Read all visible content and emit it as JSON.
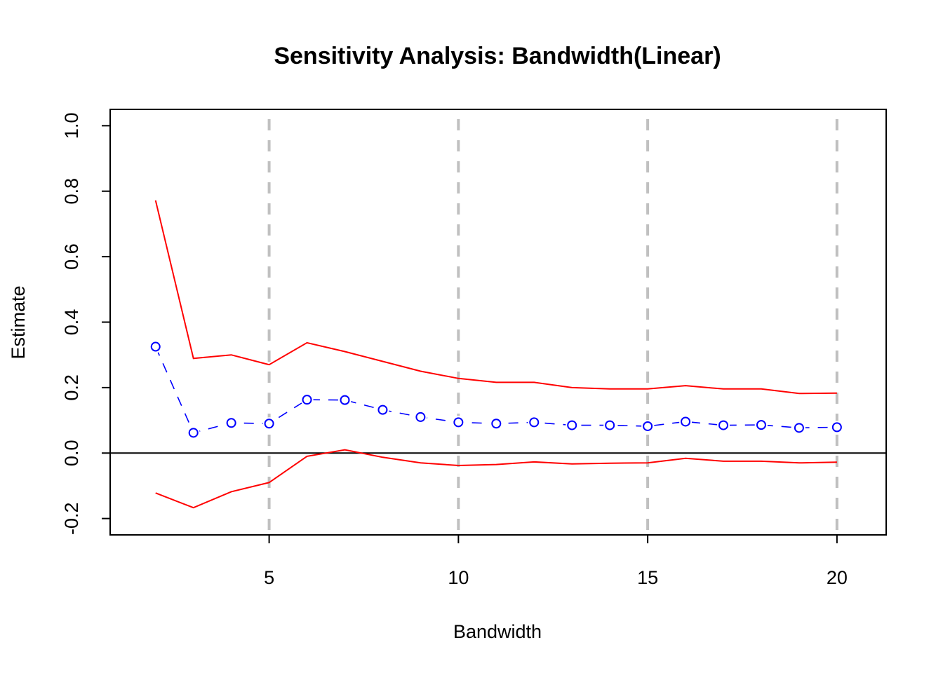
{
  "chart_data": {
    "type": "line",
    "title": "Sensitivity Analysis: Bandwidth(Linear)",
    "xlabel": "Bandwidth",
    "ylabel": "Estimate",
    "xlim": [
      0.8,
      21.3
    ],
    "ylim": [
      -0.25,
      1.05
    ],
    "x_ticks": [
      5,
      10,
      15,
      20
    ],
    "x_tick_labels": [
      "5",
      "10",
      "15",
      "20"
    ],
    "y_ticks": [
      -0.2,
      0.0,
      0.2,
      0.4,
      0.6,
      0.8,
      1.0
    ],
    "y_tick_labels": [
      "-0.2",
      "0.0",
      "0.2",
      "0.4",
      "0.6",
      "0.8",
      "1.0"
    ],
    "reference_vlines": [
      5,
      10,
      15,
      20
    ],
    "reference_hline": 0,
    "grid": false,
    "legend": "none",
    "x": [
      2,
      3,
      4,
      5,
      6,
      7,
      8,
      9,
      10,
      11,
      12,
      13,
      14,
      15,
      16,
      17,
      18,
      19,
      20
    ],
    "series": [
      {
        "role": "estimate",
        "color": "#0000ff",
        "style": "dashed-with-circles",
        "values": [
          0.325,
          0.062,
          0.092,
          0.09,
          0.163,
          0.162,
          0.132,
          0.11,
          0.094,
          0.09,
          0.094,
          0.085,
          0.085,
          0.082,
          0.096,
          0.085,
          0.086,
          0.077,
          0.079
        ]
      },
      {
        "role": "upper",
        "color": "#ff0000",
        "style": "solid",
        "values": [
          0.772,
          0.289,
          0.3,
          0.27,
          0.337,
          0.31,
          0.28,
          0.25,
          0.228,
          0.216,
          0.216,
          0.2,
          0.196,
          0.196,
          0.206,
          0.196,
          0.196,
          0.182,
          0.183
        ]
      },
      {
        "role": "lower",
        "color": "#ff0000",
        "style": "solid",
        "values": [
          -0.122,
          -0.167,
          -0.118,
          -0.09,
          -0.01,
          0.01,
          -0.013,
          -0.03,
          -0.038,
          -0.035,
          -0.027,
          -0.033,
          -0.031,
          -0.03,
          -0.016,
          -0.025,
          -0.025,
          -0.03,
          -0.028
        ]
      }
    ],
    "colors": {
      "estimate": "#0000ff",
      "ci": "#ff0000",
      "reference": "#c0c0c0",
      "axis": "#000000"
    }
  }
}
